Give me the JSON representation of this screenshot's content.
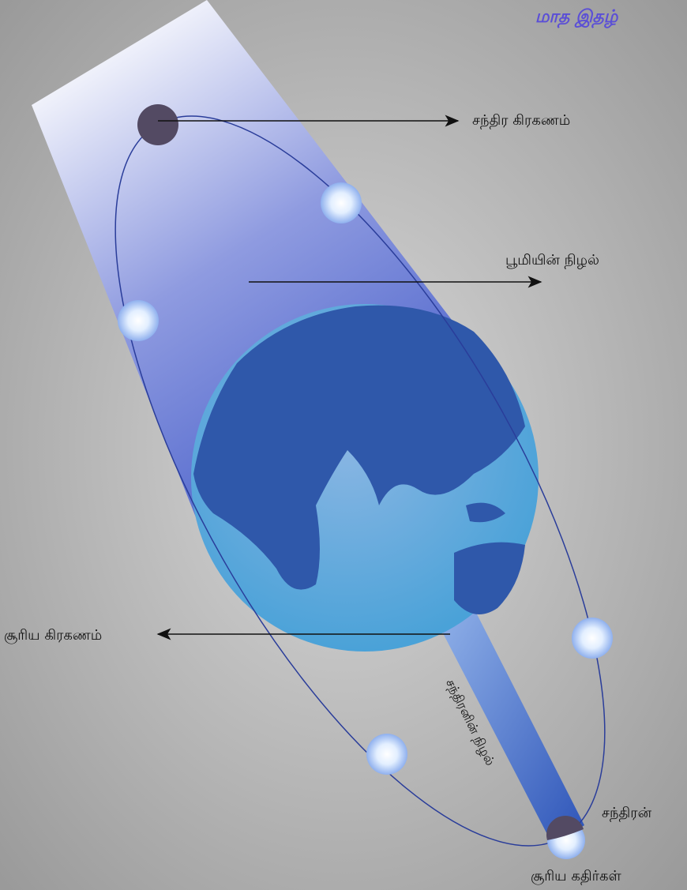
{
  "header": {
    "title": "மாத இதழ்"
  },
  "labels": {
    "lunar_eclipse": "சந்திர கிரகணம்",
    "earth_shadow": "பூமியின் நிழல்",
    "solar_eclipse": "சூரிய கிரகணம்",
    "moon_shadow": "சந்திரனின் நிழல்",
    "moon": "சந்திரன்",
    "sun_rays": "சூரிய கதிர்கள்"
  }
}
